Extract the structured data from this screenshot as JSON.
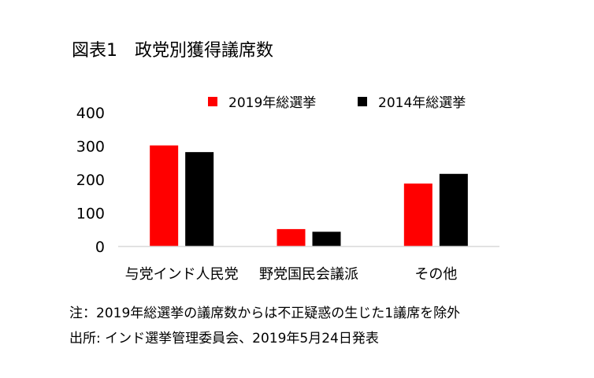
{
  "figure": {
    "title": "図表1　政党別獲得議席数",
    "note": "注：2019年総選挙の議席数からは不正疑惑の生じた1議席を除外",
    "source": "出所: インド選挙管理委員会、2019年5月24日発表"
  },
  "chart_data": {
    "type": "bar",
    "categories": [
      "与党インド人民党",
      "野党国民会議派",
      "その他"
    ],
    "series": [
      {
        "name": "2019年総選挙",
        "color": "#ff0000",
        "values": [
          302,
          52,
          188
        ]
      },
      {
        "name": "2014年総選挙",
        "color": "#000000",
        "values": [
          282,
          44,
          217
        ]
      }
    ],
    "y_ticks": [
      0,
      100,
      200,
      300,
      400
    ],
    "ylim": [
      0,
      400
    ],
    "grid": false,
    "legend_position": "top-right"
  }
}
